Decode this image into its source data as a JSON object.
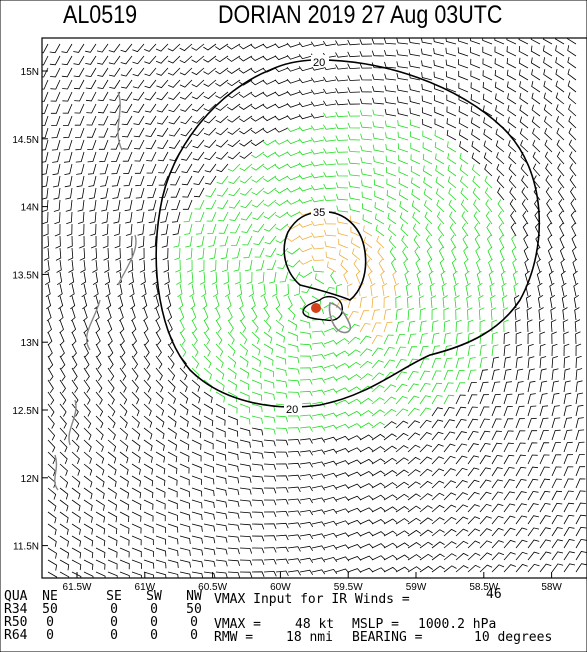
{
  "header": {
    "storm_id": "AL0519",
    "title": "DORIAN 2019 27 Aug 03UTC"
  },
  "map": {
    "lat_ticks": [
      "15N",
      "14.5N",
      "14N",
      "13.5N",
      "13N",
      "12.5N",
      "12N",
      "11.5N"
    ],
    "lon_ticks": [
      "61.5W",
      "61W",
      "60.5W",
      "60W",
      "59.5W",
      "59W",
      "58.5W",
      "58W"
    ],
    "contours": [
      {
        "label": "20",
        "color": "#000000"
      },
      {
        "label": "35",
        "color": "#000000"
      },
      {
        "label": "20",
        "color": "#000000"
      }
    ],
    "wind_band_colors": {
      "below_34kt": "#000000",
      "34_to_50kt": "#22dd22",
      "50_to_64kt": "#f0b040"
    },
    "center_marker_color": "#d2401c"
  },
  "wind_radii_table": {
    "columns": [
      "QUA",
      "NE",
      "SE",
      "SW",
      "NW"
    ],
    "rows": [
      {
        "label": "R34",
        "values": [
          "50",
          "0",
          "0",
          "50"
        ]
      },
      {
        "label": "R50",
        "values": [
          "0",
          "0",
          "0",
          "0"
        ]
      },
      {
        "label": "R64",
        "values": [
          "0",
          "0",
          "0",
          "0"
        ]
      }
    ]
  },
  "stats": {
    "vmax_ir_label": "VMAX Input for IR Winds =",
    "vmax_ir_value": "46",
    "vmax_label": "VMAX =",
    "vmax_value": "48 kt",
    "mslp_label": "MSLP =",
    "mslp_value": "1000.2 hPa",
    "rmw_label": "RMW =",
    "rmw_value": "18 nmi",
    "bearing_label": "BEARING =",
    "bearing_value": "10 degrees"
  }
}
